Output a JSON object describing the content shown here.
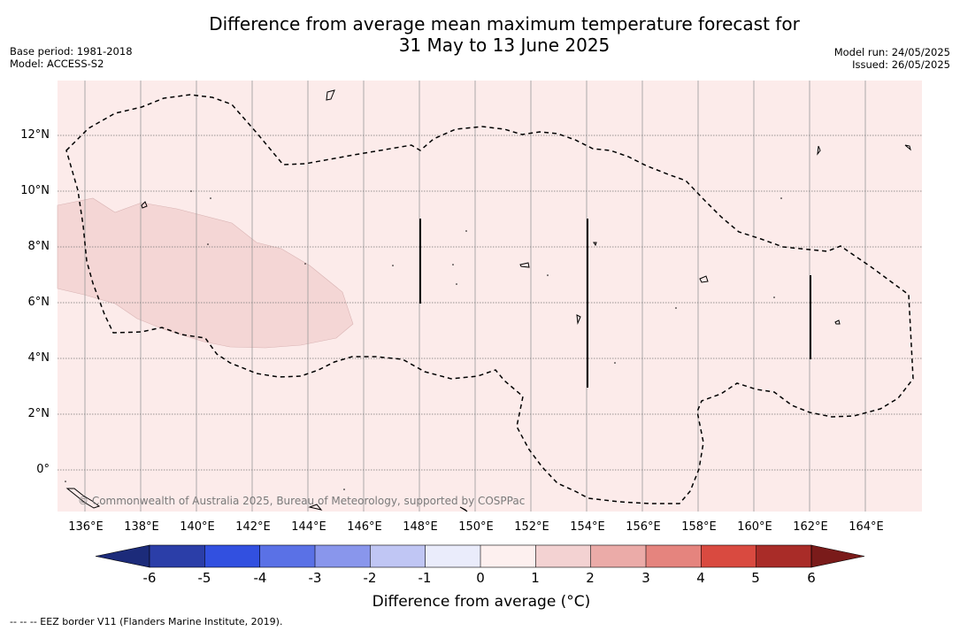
{
  "title_line1": "Difference from average mean maximum temperature forecast for",
  "title_line2": "31 May to 13 June 2025",
  "base_period": "Base period: 1981-2018",
  "model": "Model: ACCESS-S2",
  "model_run": "Model run: 24/05/2025",
  "issued": "Issued: 26/05/2025",
  "copyright": "© Commonwealth of Australia 2025, Bureau of Meteorology, supported by COSPPac",
  "footnote": "--  --  -- EEZ border V11 (Flanders Marine Institute, 2019).",
  "lat_labels": [
    "12°N",
    "10°N",
    "8°N",
    "6°N",
    "4°N",
    "2°N",
    "0°"
  ],
  "lon_labels": [
    "136°E",
    "138°E",
    "140°E",
    "142°E",
    "144°E",
    "146°E",
    "148°E",
    "150°E",
    "152°E",
    "154°E",
    "156°E",
    "158°E",
    "160°E",
    "162°E",
    "164°E"
  ],
  "colorbar": {
    "title": "Difference from average (°C)",
    "ticks": [
      "-6",
      "-5",
      "-4",
      "-3",
      "-2",
      "-1",
      "0",
      "1",
      "2",
      "3",
      "4",
      "5",
      "6"
    ],
    "colors": [
      "#1c2b7a",
      "#2b3ea8",
      "#3250e0",
      "#5a71e6",
      "#8996ec",
      "#c0c6f4",
      "#eaecfb",
      "#fdf0ef",
      "#f3d2d2",
      "#ebaba8",
      "#e5847e",
      "#d94a40",
      "#a92c28",
      "#7a1b1a"
    ]
  },
  "map": {
    "ocean_color": "#fcebea",
    "anomaly_patch_color": "#f4d6d5",
    "eez_line": "dashed black"
  }
}
